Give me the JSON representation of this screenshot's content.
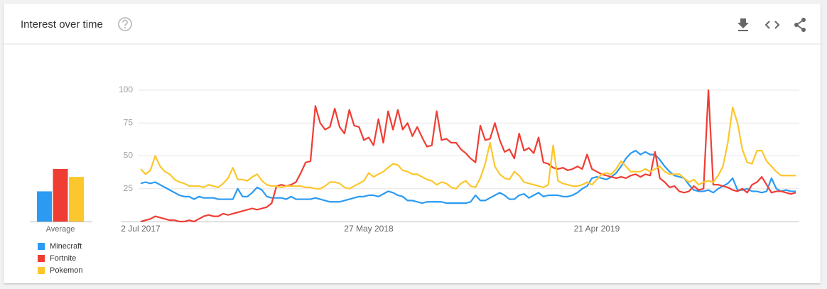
{
  "header": {
    "title": "Interest over time"
  },
  "chart_data": {
    "type": "line",
    "average_label": "Average",
    "categories": [
      "2 Jul 2017",
      null,
      null,
      null,
      null,
      null,
      null,
      null,
      null,
      null,
      null,
      null,
      null,
      null,
      null,
      null,
      null,
      null,
      null,
      null,
      null,
      null,
      null,
      null,
      null,
      null,
      null,
      null,
      null,
      null,
      null,
      null,
      null,
      null,
      null,
      null,
      null,
      null,
      null,
      null,
      null,
      null,
      null,
      null,
      null,
      null,
      null,
      "27 May 2018",
      null,
      null,
      null,
      null,
      null,
      null,
      null,
      null,
      null,
      null,
      null,
      null,
      null,
      null,
      null,
      null,
      null,
      null,
      null,
      null,
      null,
      null,
      null,
      null,
      null,
      null,
      null,
      null,
      null,
      null,
      null,
      null,
      null,
      null,
      null,
      null,
      null,
      null,
      null,
      null,
      null,
      null,
      null,
      null,
      null,
      null,
      "21 Apr 2019",
      null,
      null,
      null,
      null,
      null,
      null,
      null,
      null,
      null,
      null,
      null,
      null,
      null,
      null,
      null,
      null,
      null,
      null,
      null,
      null,
      null,
      null,
      null,
      null,
      null,
      null,
      null,
      null,
      null,
      null,
      null,
      null,
      null,
      null,
      null,
      null,
      null,
      null,
      null,
      null,
      null
    ],
    "ylim": [
      0,
      100
    ],
    "yticks": [
      25,
      50,
      75,
      100
    ],
    "grid": true,
    "series": [
      {
        "name": "Minecraft",
        "color": "#2a9af3",
        "average": 23,
        "values": [
          29,
          30,
          29,
          30,
          28,
          26,
          24,
          22,
          20,
          19,
          19,
          17,
          19,
          18,
          18,
          18,
          17,
          17,
          17,
          17,
          25,
          19,
          19,
          22,
          26,
          24,
          19,
          18,
          18,
          18,
          17,
          19,
          17,
          17,
          17,
          17,
          18,
          17,
          16,
          15,
          15,
          15,
          16,
          17,
          18,
          19,
          19,
          20,
          20,
          19,
          21,
          23,
          22,
          20,
          19,
          16,
          16,
          15,
          14,
          15,
          15,
          15,
          15,
          14,
          14,
          14,
          14,
          14,
          15,
          20,
          16,
          16,
          18,
          20,
          22,
          20,
          17,
          17,
          20,
          21,
          18,
          20,
          22,
          19,
          20,
          20,
          20,
          19,
          19,
          20,
          22,
          25,
          27,
          33,
          34,
          33,
          32,
          34,
          37,
          42,
          48,
          52,
          54,
          51,
          53,
          51,
          51,
          47,
          42,
          38,
          35,
          34,
          33,
          28,
          24,
          23,
          23,
          24,
          22,
          25,
          27,
          29,
          33,
          24,
          24,
          25,
          23,
          23,
          22,
          23,
          33,
          25,
          23,
          24,
          23,
          23
        ]
      },
      {
        "name": "Fortnite",
        "color": "#f03d33",
        "average": 40,
        "values": [
          0,
          1,
          2,
          4,
          3,
          2,
          1,
          1,
          0,
          0,
          1,
          0,
          2,
          4,
          5,
          4,
          4,
          6,
          5,
          6,
          7,
          8,
          9,
          10,
          9,
          10,
          11,
          14,
          27,
          28,
          27,
          28,
          30,
          37,
          45,
          46,
          88,
          75,
          70,
          72,
          86,
          72,
          67,
          85,
          73,
          72,
          62,
          64,
          58,
          78,
          60,
          84,
          70,
          85,
          70,
          75,
          65,
          72,
          64,
          57,
          58,
          84,
          62,
          63,
          60,
          60,
          55,
          52,
          48,
          45,
          73,
          62,
          63,
          75,
          62,
          53,
          55,
          48,
          67,
          54,
          56,
          52,
          64,
          45,
          44,
          41,
          40,
          41,
          39,
          40,
          42,
          40,
          51,
          40,
          38,
          36,
          35,
          34,
          33,
          34,
          33,
          35,
          36,
          34,
          36,
          35,
          53,
          33,
          30,
          26,
          27,
          23,
          22,
          23,
          27,
          24,
          25,
          100,
          28,
          28,
          27,
          26,
          24,
          23,
          25,
          22,
          28,
          30,
          34,
          28,
          22,
          23,
          23,
          22,
          21,
          22
        ]
      },
      {
        "name": "Pokemon",
        "color": "#fcc62d",
        "average": 34,
        "values": [
          40,
          36,
          39,
          50,
          42,
          38,
          36,
          32,
          30,
          29,
          27,
          27,
          27,
          26,
          28,
          27,
          26,
          29,
          33,
          41,
          32,
          32,
          31,
          34,
          36,
          31,
          28,
          27,
          27,
          26,
          27,
          27,
          27,
          27,
          26,
          26,
          25,
          25,
          27,
          30,
          30,
          29,
          26,
          25,
          27,
          29,
          31,
          37,
          34,
          36,
          38,
          41,
          44,
          43,
          39,
          38,
          36,
          36,
          34,
          32,
          31,
          28,
          30,
          29,
          26,
          25,
          29,
          31,
          27,
          26,
          33,
          44,
          60,
          42,
          36,
          33,
          32,
          38,
          35,
          30,
          29,
          28,
          27,
          26,
          28,
          58,
          31,
          29,
          28,
          27,
          27,
          28,
          30,
          28,
          32,
          36,
          37,
          36,
          40,
          46,
          42,
          38,
          38,
          38,
          40,
          38,
          40,
          42,
          38,
          36,
          36,
          36,
          33,
          30,
          32,
          28,
          30,
          31,
          30,
          35,
          42,
          60,
          87,
          75,
          55,
          45,
          44,
          54,
          54,
          46,
          42,
          38,
          35,
          35,
          35,
          35
        ]
      }
    ]
  }
}
